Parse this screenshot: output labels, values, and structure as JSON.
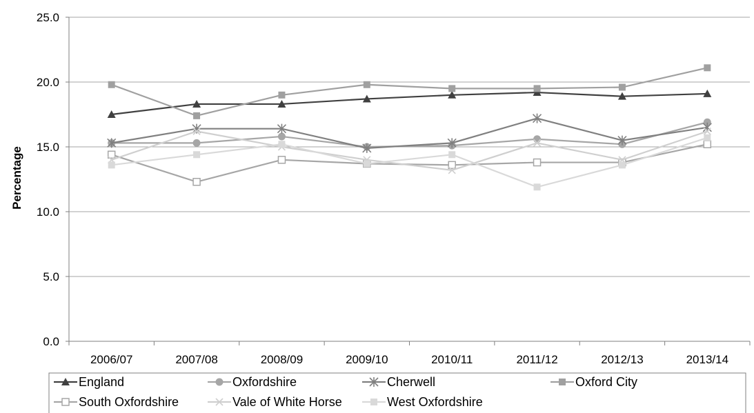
{
  "chart_data": {
    "type": "line",
    "title": "",
    "xlabel": "",
    "ylabel": "Percentage",
    "ylim": [
      0,
      25
    ],
    "yticks": [
      "0.0",
      "5.0",
      "10.0",
      "15.0",
      "20.0",
      "25.0"
    ],
    "grid": "horizontal",
    "legend_position": "bottom",
    "categories": [
      "2006/07",
      "2007/08",
      "2008/09",
      "2009/10",
      "2010/11",
      "2011/12",
      "2012/13",
      "2013/14"
    ],
    "series": [
      {
        "name": "England",
        "marker": "triangle",
        "color": "#404040",
        "values": [
          17.5,
          18.3,
          18.3,
          18.7,
          19.0,
          19.2,
          18.9,
          19.1
        ]
      },
      {
        "name": "Oxfordshire",
        "marker": "circle",
        "color": "#a6a6a6",
        "values": [
          15.3,
          15.3,
          15.8,
          15.0,
          15.1,
          15.6,
          15.2,
          16.9
        ]
      },
      {
        "name": "Cherwell",
        "marker": "star",
        "color": "#808080",
        "values": [
          15.3,
          16.4,
          16.4,
          14.9,
          15.3,
          17.2,
          15.5,
          16.5
        ]
      },
      {
        "name": "Oxford City",
        "marker": "square",
        "color": "#a0a0a0",
        "values": [
          19.8,
          17.4,
          19.0,
          19.8,
          19.5,
          19.5,
          19.6,
          21.1
        ]
      },
      {
        "name": "South Oxfordshire",
        "marker": "open-square",
        "color": "#a6a6a6",
        "values": [
          14.4,
          12.3,
          14.0,
          13.7,
          13.6,
          13.8,
          13.8,
          15.2
        ]
      },
      {
        "name": "Vale of White Horse",
        "marker": "x-cross",
        "color": "#cfcfcf",
        "values": [
          14.0,
          16.2,
          15.0,
          14.0,
          13.2,
          15.3,
          14.0,
          16.2
        ]
      },
      {
        "name": "West Oxfordshire",
        "marker": "square",
        "color": "#d9d9d9",
        "values": [
          13.6,
          14.4,
          15.2,
          13.7,
          14.4,
          11.9,
          13.6,
          15.7
        ]
      }
    ]
  }
}
